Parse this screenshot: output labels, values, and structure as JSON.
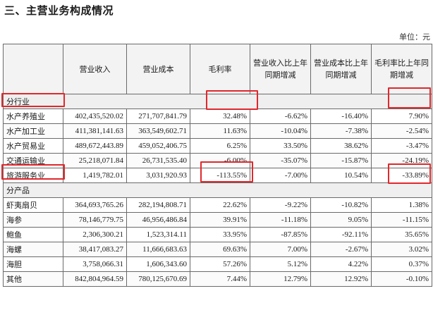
{
  "heading": "三、主营业务构成情况",
  "unit": "单位：元",
  "columns": [
    "",
    "营业收入",
    "营业成本",
    "毛利率",
    "营业收入比上年同期增减",
    "营业成本比上年同期增减",
    "毛利率比上年同期增减"
  ],
  "sections": [
    {
      "label": "分行业",
      "rows": [
        [
          "水产养殖业",
          "402,435,520.02",
          "271,707,841.79",
          "32.48%",
          "-6.62%",
          "-16.40%",
          "7.90%"
        ],
        [
          "水产加工业",
          "411,381,141.63",
          "363,549,602.71",
          "11.63%",
          "-10.04%",
          "-7.38%",
          "-2.54%"
        ],
        [
          "水产贸易业",
          "489,672,443.89",
          "459,052,406.75",
          "6.25%",
          "33.50%",
          "38.62%",
          "-3.47%"
        ],
        [
          "交通运输业",
          "25,218,071.84",
          "26,731,535.40",
          "-6.00%",
          "-35.07%",
          "-15.87%",
          "-24.19%"
        ],
        [
          "旅游服务业",
          "1,419,782.01",
          "3,031,920.93",
          "-113.55%",
          "-7.00%",
          "10.54%",
          "-33.89%"
        ]
      ]
    },
    {
      "label": "分产品",
      "rows": [
        [
          "虾夷扇贝",
          "364,693,765.26",
          "282,194,808.71",
          "22.62%",
          "-9.22%",
          "-10.82%",
          "1.38%"
        ],
        [
          "海参",
          "78,146,779.75",
          "46,956,486.84",
          "39.91%",
          "-11.18%",
          "9.05%",
          "-11.15%"
        ],
        [
          "鲍鱼",
          "2,306,300.21",
          "1,523,314.11",
          "33.95%",
          "-87.85%",
          "-92.11%",
          "35.65%"
        ],
        [
          "海螺",
          "38,417,083.27",
          "11,666,683.63",
          "69.63%",
          "7.00%",
          "-2.67%",
          "3.02%"
        ],
        [
          "海胆",
          "3,758,066.31",
          "1,606,343.60",
          "57.26%",
          "5.12%",
          "4.22%",
          "0.37%"
        ],
        [
          "其他",
          "842,804,964.59",
          "780,125,670.69",
          "7.44%",
          "12.79%",
          "12.92%",
          "-0.10%"
        ]
      ]
    }
  ],
  "highlight_color": "#e0282c"
}
